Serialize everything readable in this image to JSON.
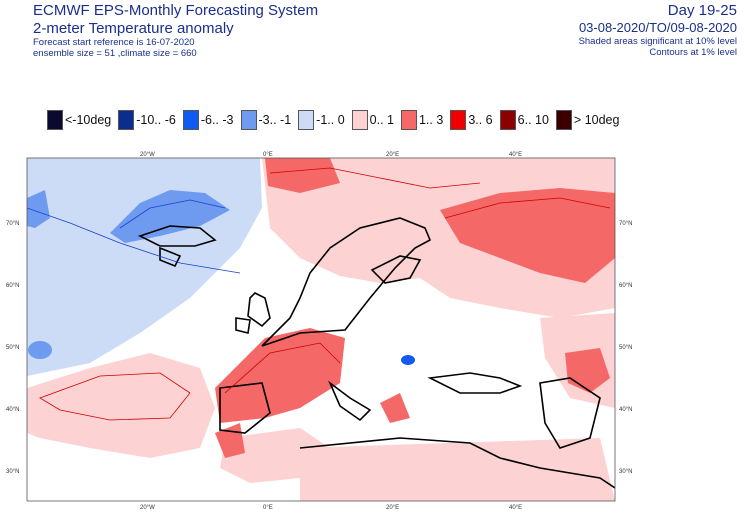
{
  "header": {
    "title_line1": "ECMWF EPS-Monthly Forecasting System",
    "title_line2": "2-meter Temperature anomaly",
    "forecast_start": "Forecast start reference is 16-07-2020",
    "ensemble_info": "ensemble size = 51  ,climate size = 660",
    "day_range": "Day 19-25",
    "date_range": "03-08-2020/TO/09-08-2020",
    "shaded_note": "Shaded areas significant at 10% level",
    "contour_note": "Contours at 1% level"
  },
  "legend": [
    {
      "label": "<-10deg",
      "color": "#0a0a2e"
    },
    {
      "label": "-10.. -6",
      "color": "#0b2d8f"
    },
    {
      "label": "-6.. -3",
      "color": "#0f5af0"
    },
    {
      "label": "-3.. -1",
      "color": "#6e9af0"
    },
    {
      "label": "-1..  0",
      "color": "#ccdcf6"
    },
    {
      "label": "0..  1",
      "color": "#fcd2d2"
    },
    {
      "label": "1..  3",
      "color": "#f46868"
    },
    {
      "label": "3..  6",
      "color": "#f00000"
    },
    {
      "label": "6.. 10",
      "color": "#8c0000"
    },
    {
      "label": "> 10deg",
      "color": "#3a0000"
    }
  ],
  "map": {
    "lon_top_labels": [
      "20°W",
      "0°E",
      "20°E",
      "40°E"
    ],
    "lon_bottom_labels": [
      "20°W",
      "0°E",
      "20°E",
      "40°E"
    ],
    "lat_left_labels": [
      "70°N",
      "60°N",
      "50°N",
      "40°N",
      "30°N"
    ],
    "lat_right_labels": [
      "70°N",
      "60°N",
      "50°N",
      "40°N",
      "30°N"
    ]
  }
}
